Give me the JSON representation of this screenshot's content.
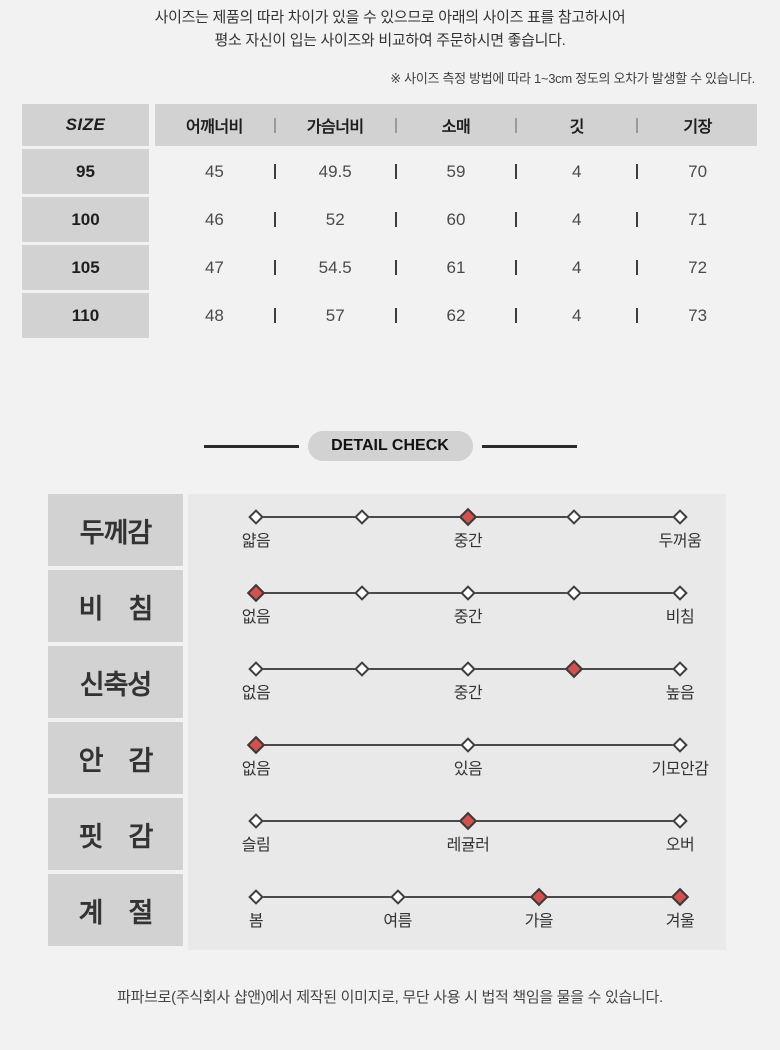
{
  "page": {
    "intro_line1": "사이즈는 제품의 따라 차이가 있을 수 있으므로 아래의 사이즈 표를 참고하시어",
    "intro_line2": "평소 자신이 입는 사이즈와 비교하여 주문하시면 좋습니다.",
    "measure_note": "※ 사이즈 측정 방법에 따라 1~3cm 정도의 오차가 발생할 수 있습니다.",
    "footer": "파파브로(주식회사 샵앤)에서 제작된 이미지로, 무단 사용 시 법적 책임을 물을 수 있습니다."
  },
  "size_table": {
    "size_header": "SIZE",
    "columns": [
      "어깨너비",
      "가슴너비",
      "소매",
      "깃",
      "기장"
    ],
    "rows": [
      {
        "size": "95",
        "values": [
          "45",
          "49.5",
          "59",
          "4",
          "70"
        ]
      },
      {
        "size": "100",
        "values": [
          "46",
          "52",
          "60",
          "4",
          "71"
        ]
      },
      {
        "size": "105",
        "values": [
          "47",
          "54.5",
          "61",
          "4",
          "72"
        ]
      },
      {
        "size": "110",
        "values": [
          "48",
          "57",
          "62",
          "4",
          "73"
        ]
      }
    ]
  },
  "detail_check": {
    "title": "DETAIL CHECK",
    "rows": [
      {
        "label": "두께감",
        "points": [
          {
            "pos": 0,
            "label": "얇음",
            "active": false
          },
          {
            "pos": 25,
            "active": false
          },
          {
            "pos": 50,
            "label": "중간",
            "active": true
          },
          {
            "pos": 75,
            "active": false
          },
          {
            "pos": 100,
            "label": "두꺼움",
            "active": false
          }
        ]
      },
      {
        "label": "비　침",
        "points": [
          {
            "pos": 0,
            "label": "없음",
            "active": true
          },
          {
            "pos": 25,
            "active": false
          },
          {
            "pos": 50,
            "label": "중간",
            "active": false
          },
          {
            "pos": 75,
            "active": false
          },
          {
            "pos": 100,
            "label": "비침",
            "active": false
          }
        ]
      },
      {
        "label": "신축성",
        "points": [
          {
            "pos": 0,
            "label": "없음",
            "active": false
          },
          {
            "pos": 25,
            "active": false
          },
          {
            "pos": 50,
            "label": "중간",
            "active": false
          },
          {
            "pos": 75,
            "active": true
          },
          {
            "pos": 100,
            "label": "높음",
            "active": false
          }
        ]
      },
      {
        "label": "안　감",
        "points": [
          {
            "pos": 0,
            "label": "없음",
            "active": true
          },
          {
            "pos": 50,
            "label": "있음",
            "active": false
          },
          {
            "pos": 100,
            "label": "기모안감",
            "active": false
          }
        ]
      },
      {
        "label": "핏　감",
        "points": [
          {
            "pos": 0,
            "label": "슬림",
            "active": false
          },
          {
            "pos": 50,
            "label": "레귤러",
            "active": true
          },
          {
            "pos": 100,
            "label": "오버",
            "active": false
          }
        ]
      },
      {
        "label": "계　절",
        "points": [
          {
            "pos": 0,
            "label": "봄",
            "active": false
          },
          {
            "pos": 33.4,
            "label": "여름",
            "active": false
          },
          {
            "pos": 66.7,
            "label": "가을",
            "active": true
          },
          {
            "pos": 100,
            "label": "겨울",
            "active": true
          }
        ]
      }
    ]
  },
  "colors": {
    "accent_red": "#d2504e",
    "cell_gray": "#d2d2d2",
    "panel_gray": "#e9e9e9",
    "page_bg": "#f2f2f2",
    "line_dark": "#4a4a4a"
  }
}
